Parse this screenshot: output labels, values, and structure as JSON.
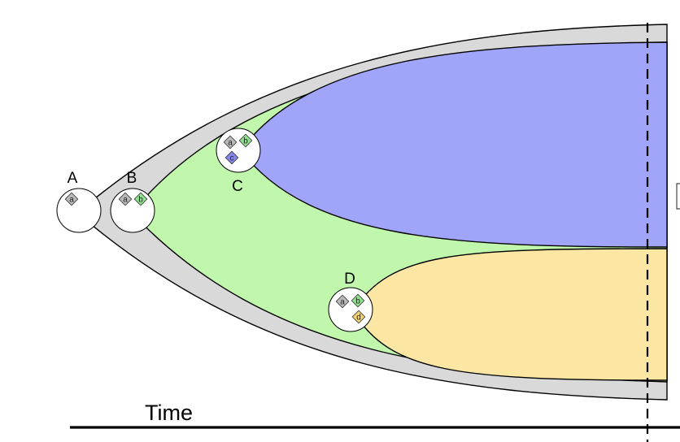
{
  "time_label": "Time",
  "clones": [
    {
      "id": "A",
      "label": "A",
      "mutations": [
        "a"
      ]
    },
    {
      "id": "B",
      "label": "B",
      "mutations": [
        "a",
        "b"
      ]
    },
    {
      "id": "C",
      "label": "C",
      "mutations": [
        "a",
        "b",
        "c"
      ]
    },
    {
      "id": "D",
      "label": "D",
      "mutations": [
        "a",
        "b",
        "d"
      ]
    }
  ],
  "colors": {
    "clone_a": "#d9d9d9",
    "clone_b": "#c0f7ac",
    "clone_c": "#a1a5fa",
    "clone_d": "#fbe7a3",
    "marker_a": "#b9b9b9",
    "marker_b": "#8fe08f",
    "marker_c": "#8486ea",
    "marker_d": "#f4d173"
  }
}
